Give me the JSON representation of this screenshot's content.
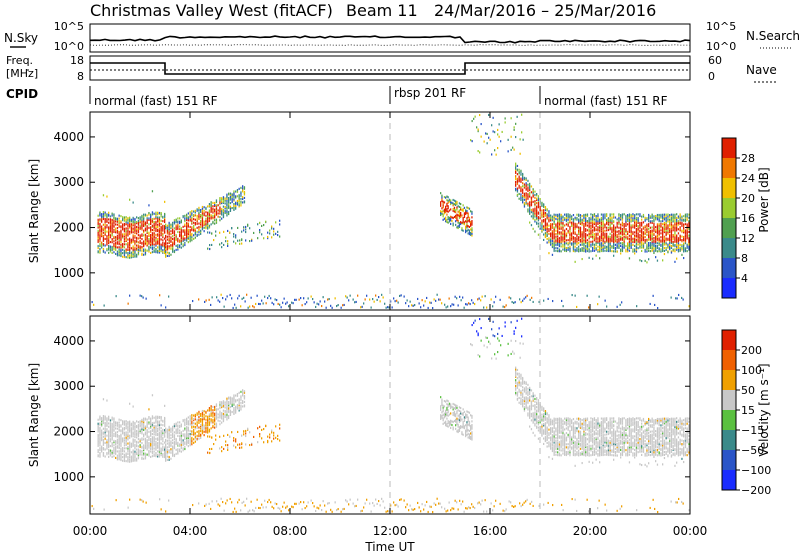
{
  "header": {
    "station": "Christmas Valley West (fitACF)",
    "beam": "Beam 11",
    "date_range": "24/Mar/2016 – 25/Mar/2016"
  },
  "status_panels": {
    "nsky_label": "N.Sky",
    "nsearch_label": "N.Search",
    "noise_ticks_left": [
      "10^5",
      "10^0"
    ],
    "noise_ticks_right": [
      "10^5",
      "10^0"
    ],
    "freq_label_1": "Freq.",
    "freq_label_2": "[MHz]",
    "freq_ticks": [
      "18",
      "8"
    ],
    "nave_label": "Nave",
    "nave_ticks": [
      "60",
      "0"
    ],
    "cpid_label": "CPID",
    "modes": [
      {
        "label": "normal (fast) 151 RF",
        "start_h": 0
      },
      {
        "label": "rbsp 201 RF",
        "start_h": 12
      },
      {
        "label": "normal (fast) 151 RF",
        "start_h": 18
      }
    ]
  },
  "chart_data": [
    {
      "type": "heatmap",
      "name": "Power",
      "ylabel": "Slant Range [km]",
      "xlim": [
        0,
        24
      ],
      "ylim": [
        180,
        4550
      ],
      "yticks": [
        1000,
        2000,
        3000,
        4000
      ],
      "colorbar": {
        "label": "Power [dB]",
        "ticks": [
          "4",
          "8",
          "12",
          "16",
          "20",
          "24",
          "28"
        ],
        "colors": [
          "#1a2cff",
          "#2a55c8",
          "#3a8a8a",
          "#50a050",
          "#9acc30",
          "#f0c000",
          "#f07800",
          "#e02000"
        ]
      }
    },
    {
      "type": "heatmap",
      "name": "Velocity",
      "ylabel": "Slant Range [km]",
      "xlabel": "Time UT",
      "xlim": [
        0,
        24
      ],
      "ylim": [
        180,
        4550
      ],
      "yticks": [
        1000,
        2000,
        3000,
        4000
      ],
      "xticks": [
        "00:00",
        "04:00",
        "08:00",
        "12:00",
        "16:00",
        "20:00",
        "00:00"
      ],
      "colorbar": {
        "label": "Velocity [m s⁻¹]",
        "ticks": [
          "200",
          "100",
          "50",
          "15",
          "−15",
          "−50",
          "−100",
          "−200"
        ],
        "colors": [
          "#1a2cff",
          "#2a55c8",
          "#3a8a8a",
          "#5ac040",
          "#c8c8c8",
          "#f0a000",
          "#f06000",
          "#e02000"
        ]
      }
    }
  ],
  "colors": {
    "gray": "#c8c8c8",
    "red": "#e02000",
    "orange": "#f07800",
    "yellow": "#f0c000",
    "green": "#50a050",
    "blue": "#1a2cff",
    "dashed": "#bbbbbb"
  }
}
